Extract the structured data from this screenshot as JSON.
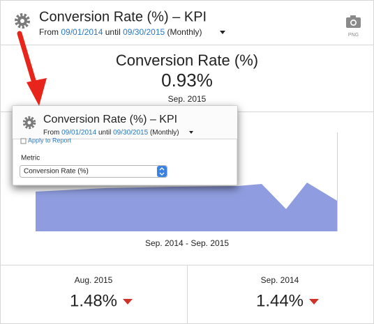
{
  "header": {
    "title": "Conversion Rate (%) – KPI",
    "from_label": "From",
    "start_date": "09/01/2014",
    "until_label": "until",
    "end_date": "09/30/2015",
    "period": "(Monthly)",
    "export": "PNG"
  },
  "kpi": {
    "metric": "Conversion Rate (%)",
    "value": "0.93%",
    "period": "Sep. 2015"
  },
  "chart": {
    "range_label": "Sep. 2014 - Sep. 2015"
  },
  "comparisons": [
    {
      "period": "Aug. 2015",
      "value": "1.48%"
    },
    {
      "period": "Sep. 2014",
      "value": "1.44%"
    }
  ],
  "popup": {
    "title": "Conversion Rate (%) – KPI",
    "from_label": "From",
    "start_date": "09/01/2014",
    "until_label": "until",
    "end_date": "09/30/2015",
    "period": "(Monthly)",
    "apply": "Apply to Report",
    "metric_label": "Metric",
    "metric_value": "Conversion Rate (%)"
  }
}
